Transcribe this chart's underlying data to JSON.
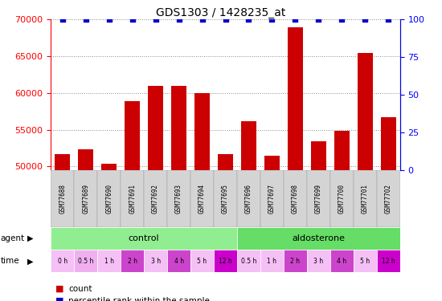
{
  "title": "GDS1303 / 1428235_at",
  "samples": [
    "GSM77688",
    "GSM77689",
    "GSM77690",
    "GSM77691",
    "GSM77692",
    "GSM77693",
    "GSM77694",
    "GSM77695",
    "GSM77696",
    "GSM77697",
    "GSM77698",
    "GSM77699",
    "GSM77700",
    "GSM77701",
    "GSM77702"
  ],
  "counts": [
    51700,
    52300,
    50400,
    58900,
    61000,
    61000,
    60000,
    51700,
    56200,
    51500,
    69000,
    53400,
    54800,
    65500,
    56700
  ],
  "percentiles": [
    100,
    100,
    100,
    100,
    100,
    100,
    100,
    100,
    100,
    100,
    100,
    100,
    100,
    100,
    100
  ],
  "ylim_left": [
    49500,
    70000
  ],
  "ylim_right": [
    0,
    100
  ],
  "yticks_left": [
    50000,
    55000,
    60000,
    65000,
    70000
  ],
  "yticks_right": [
    0,
    25,
    50,
    75,
    100
  ],
  "bar_color": "#cc0000",
  "percentile_color": "#0000cc",
  "agent_groups": [
    {
      "label": "control",
      "start": 0,
      "end": 8,
      "color": "#90ee90"
    },
    {
      "label": "aldosterone",
      "start": 8,
      "end": 15,
      "color": "#66dd66"
    }
  ],
  "time_labels": [
    "0 h",
    "0.5 h",
    "1 h",
    "2 h",
    "3 h",
    "4 h",
    "5 h",
    "12 h",
    "0.5 h",
    "1 h",
    "2 h",
    "3 h",
    "4 h",
    "5 h",
    "12 h"
  ],
  "time_colors": [
    "#f5c0f5",
    "#f0b0f0",
    "#f5c0f5",
    "#cc44cc",
    "#f5c0f5",
    "#cc44cc",
    "#f5c0f5",
    "#cc00cc",
    "#f5c0f5",
    "#f5c0f5",
    "#cc44cc",
    "#f5c0f5",
    "#cc44cc",
    "#f5c0f5",
    "#cc00cc"
  ],
  "background_color": "#ffffff",
  "grid_color": "#888888",
  "bar_width": 0.65,
  "legend_items": [
    {
      "label": "count",
      "color": "#cc0000"
    },
    {
      "label": "percentile rank within the sample",
      "color": "#0000cc"
    }
  ]
}
